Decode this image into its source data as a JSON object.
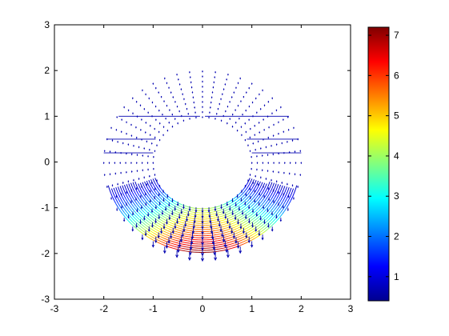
{
  "chart_data": {
    "type": "quiver_contour",
    "title": "",
    "xlabel": "",
    "ylabel": "",
    "xlim": [
      -3,
      3
    ],
    "ylim": [
      -3,
      3
    ],
    "x_ticks": [
      "-3",
      "-2",
      "-1",
      "0",
      "1",
      "2",
      "3"
    ],
    "y_ticks": [
      "-3",
      "-2",
      "-1",
      "0",
      "1",
      "2",
      "3"
    ],
    "domain": {
      "shape": "annulus",
      "inner_radius": 1,
      "outer_radius": 2,
      "center": [
        0,
        0
      ]
    },
    "vector_field": {
      "description": "downward arrows, magnitude increasing toward bottom of annulus",
      "max_arrow_at": [
        0,
        -2
      ]
    },
    "colorbar": {
      "range": [
        0.4,
        7.2
      ],
      "ticks": [
        "1",
        "2",
        "3",
        "4",
        "5",
        "6",
        "7"
      ],
      "colormap": "jet",
      "placement": "right"
    },
    "grid": false
  },
  "colors": {
    "arrow": "#0000b0",
    "axes": "#000000",
    "background": "#ffffff"
  }
}
